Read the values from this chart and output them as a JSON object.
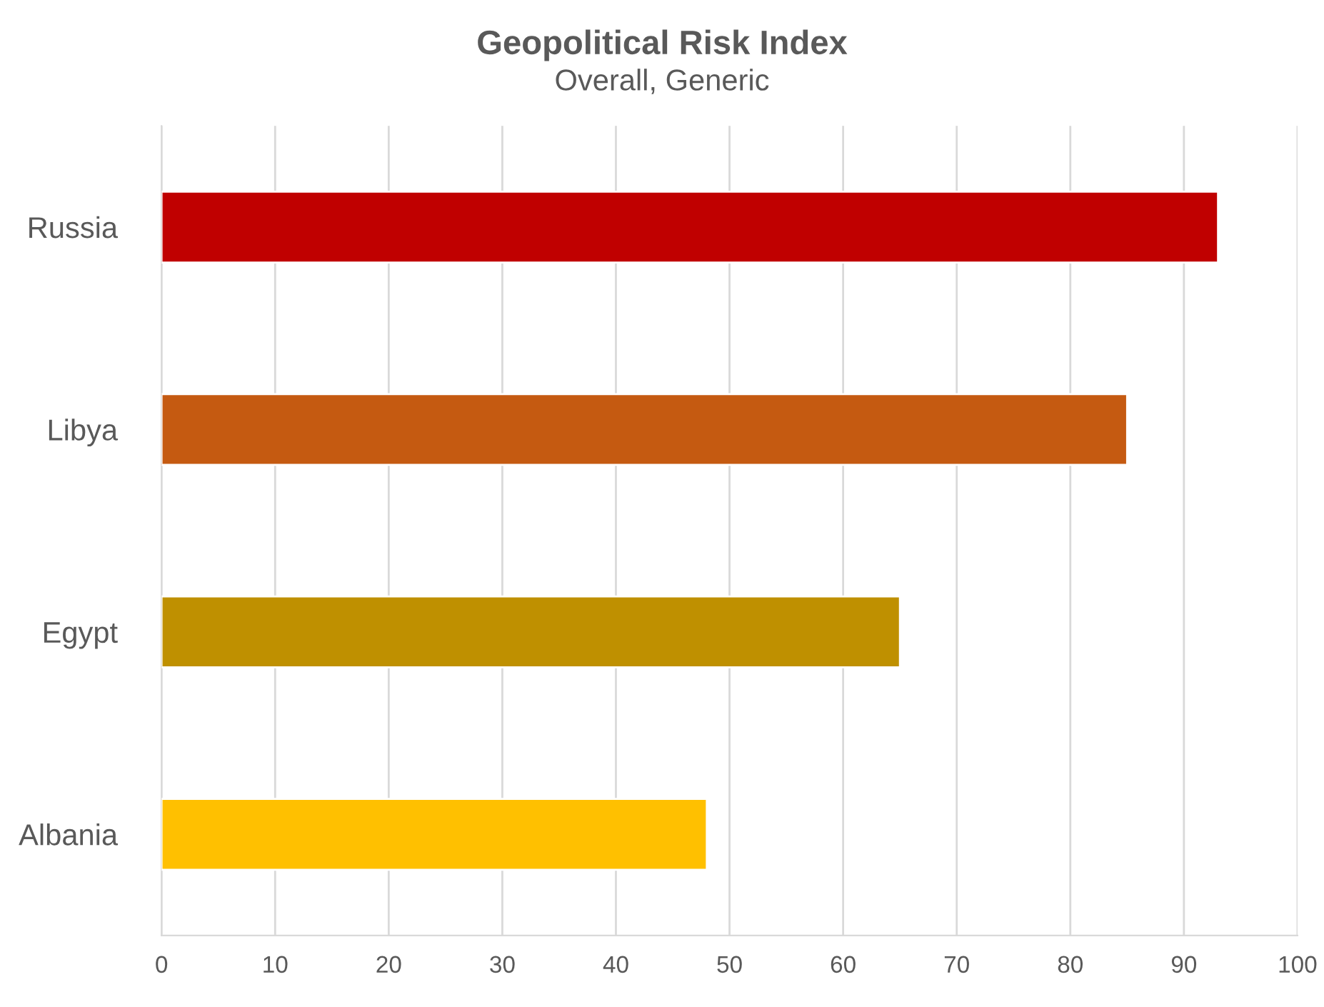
{
  "chart_data": {
    "type": "bar",
    "orientation": "horizontal",
    "title": "Geopolitical Risk Index",
    "subtitle": "Overall, Generic",
    "categories": [
      "Russia",
      "Libya",
      "Egypt",
      "Albania"
    ],
    "values": [
      93,
      85,
      65,
      48
    ],
    "colors": [
      "#c00000",
      "#c55a11",
      "#bf9000",
      "#ffc000"
    ],
    "xlim": [
      0,
      100
    ],
    "xticks": [
      0,
      10,
      20,
      30,
      40,
      50,
      60,
      70,
      80,
      90,
      100
    ],
    "grid": "x",
    "legend": false
  }
}
